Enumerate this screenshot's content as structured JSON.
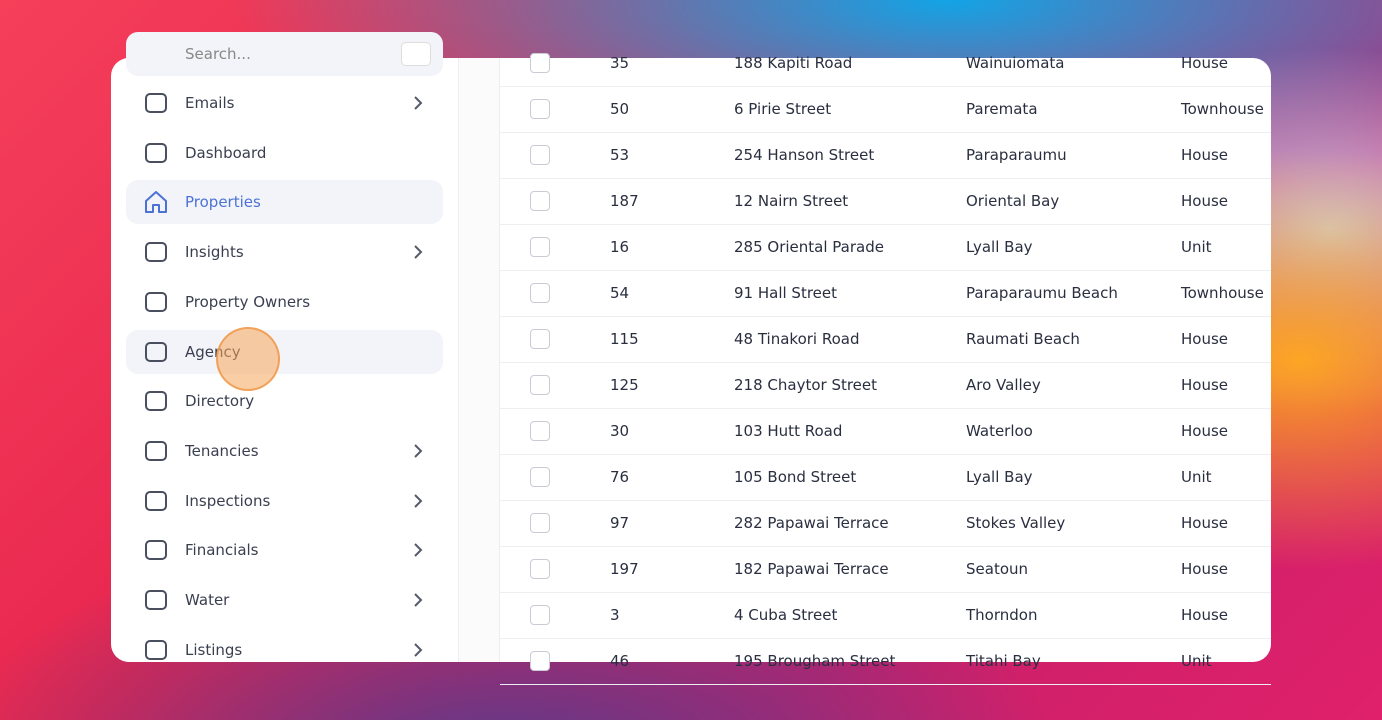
{
  "sidebar": {
    "search_placeholder": "Search...",
    "items": [
      {
        "label": "Emails",
        "submenu": true
      },
      {
        "label": "Dashboard",
        "submenu": false
      },
      {
        "label": "Properties",
        "submenu": false,
        "active": true
      },
      {
        "label": "Insights",
        "submenu": true
      },
      {
        "label": "Property Owners",
        "submenu": false
      },
      {
        "label": "Agency",
        "submenu": false,
        "hovered": true
      },
      {
        "label": "Directory",
        "submenu": false
      },
      {
        "label": "Tenancies",
        "submenu": true
      },
      {
        "label": "Inspections",
        "submenu": true
      },
      {
        "label": "Financials",
        "submenu": true
      },
      {
        "label": "Water",
        "submenu": true
      },
      {
        "label": "Listings",
        "submenu": true
      }
    ]
  },
  "table": {
    "rows": [
      [
        "35",
        "188 Kapiti Road",
        "Wainuiomata",
        "House"
      ],
      [
        "50",
        "6 Pirie Street",
        "Paremata",
        "Townhouse"
      ],
      [
        "53",
        "254 Hanson Street",
        "Paraparaumu",
        "House"
      ],
      [
        "187",
        "12 Nairn Street",
        "Oriental Bay",
        "House"
      ],
      [
        "16",
        "285 Oriental Parade",
        "Lyall Bay",
        "Unit"
      ],
      [
        "54",
        "91 Hall Street",
        "Paraparaumu Beach",
        "Townhouse"
      ],
      [
        "115",
        "48 Tinakori Road",
        "Raumati Beach",
        "House"
      ],
      [
        "125",
        "218 Chaytor Street",
        "Aro Valley",
        "House"
      ],
      [
        "30",
        "103 Hutt Road",
        "Waterloo",
        "House"
      ],
      [
        "76",
        "105 Bond Street",
        "Lyall Bay",
        "Unit"
      ],
      [
        "97",
        "282 Papawai Terrace",
        "Stokes Valley",
        "House"
      ],
      [
        "197",
        "182 Papawai Terrace",
        "Seatoun",
        "House"
      ],
      [
        "3",
        "4 Cuba Street",
        "Thorndon",
        "House"
      ],
      [
        "46",
        "195 Brougham Street",
        "Titahi Bay",
        "Unit"
      ]
    ]
  }
}
